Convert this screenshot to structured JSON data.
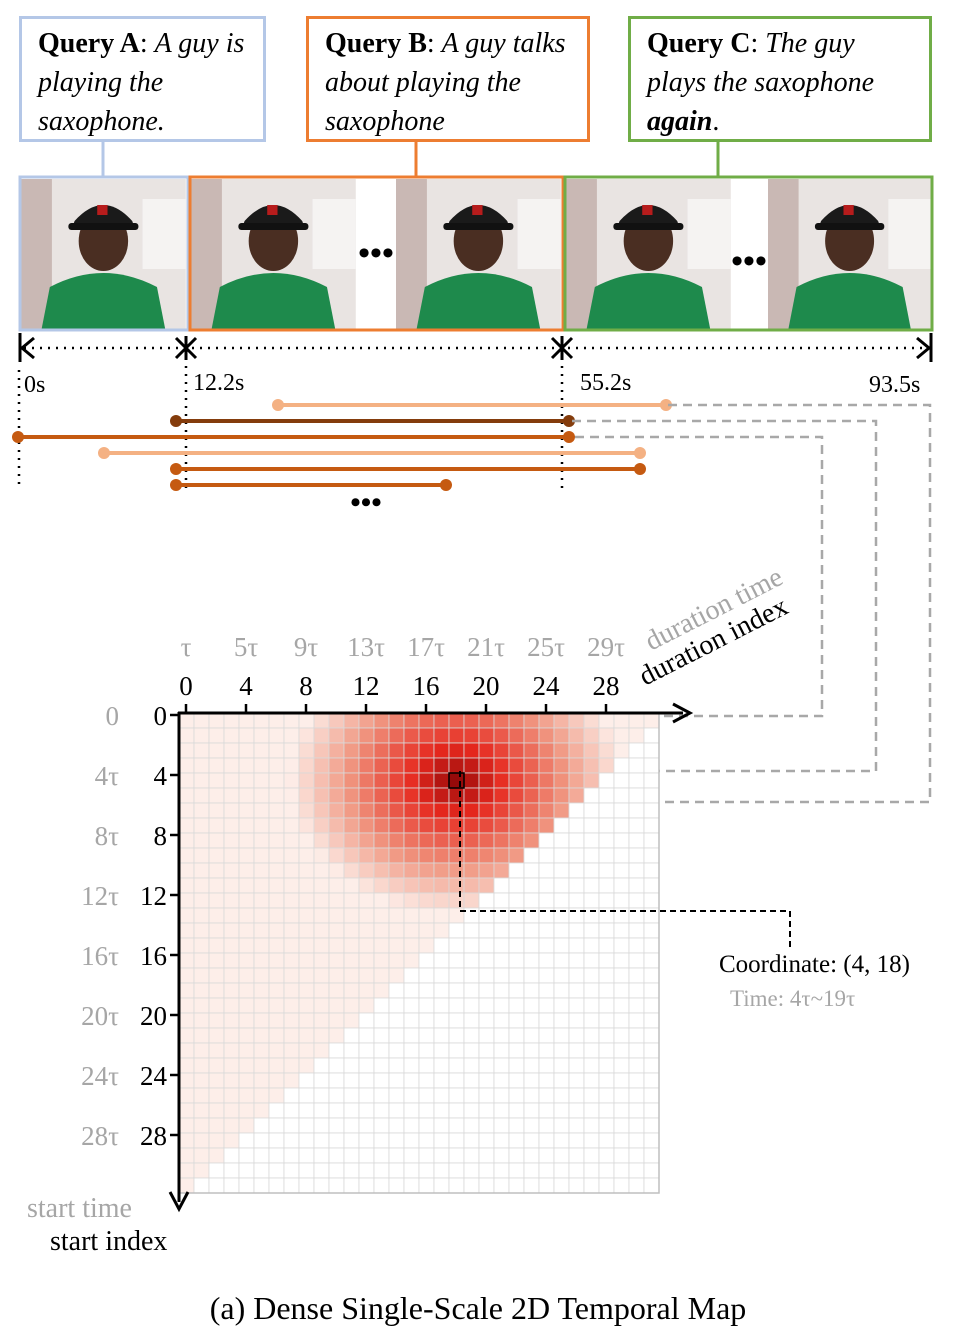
{
  "queries": {
    "a": {
      "label": "Query A",
      "text": "A guy is playing the saxophone.",
      "color": "#b4c7e7"
    },
    "b": {
      "label": "Query B",
      "text": "A guy talks about playing the saxophone",
      "color": "#ed7d31"
    },
    "c": {
      "label": "Query C",
      "text_pre": "The guy plays the saxophone ",
      "text_bold": "again",
      "text_post": ".",
      "color": "#70ad47"
    }
  },
  "timeline": {
    "labels": [
      "0s",
      "12.2s",
      "55.2s",
      "93.5s"
    ]
  },
  "map": {
    "duration_time_label": "duration time",
    "duration_index_label": "duration index",
    "start_time_label": "start time",
    "start_index_label": "start index",
    "col_time_ticks": [
      "τ",
      "5τ",
      "9τ",
      "13τ",
      "17τ",
      "21τ",
      "25τ",
      "29τ"
    ],
    "col_index_ticks": [
      "0",
      "4",
      "8",
      "12",
      "16",
      "20",
      "24",
      "28"
    ],
    "row_time_ticks": [
      "0",
      "4τ",
      "8τ",
      "12τ",
      "16τ",
      "20τ",
      "24τ",
      "28τ"
    ],
    "row_index_ticks": [
      "0",
      "4",
      "8",
      "12",
      "16",
      "20",
      "24",
      "28"
    ],
    "coordinate_label": "Coordinate: (4, 18)",
    "time_label": "Time: 4τ~19τ",
    "highlight_color": "#e02020"
  },
  "caption": "(a) Dense Single-Scale 2D Temporal Map"
}
